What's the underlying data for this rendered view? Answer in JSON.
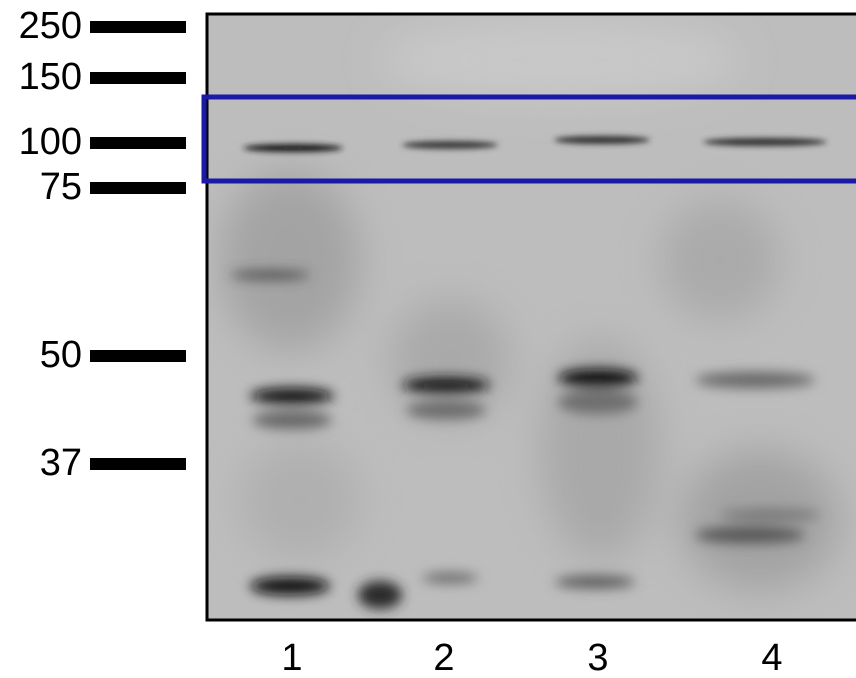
{
  "markers": [
    "250",
    "150",
    "100",
    "75",
    "50",
    "37"
  ],
  "lanes": [
    "1",
    "2",
    "3",
    "4"
  ]
}
